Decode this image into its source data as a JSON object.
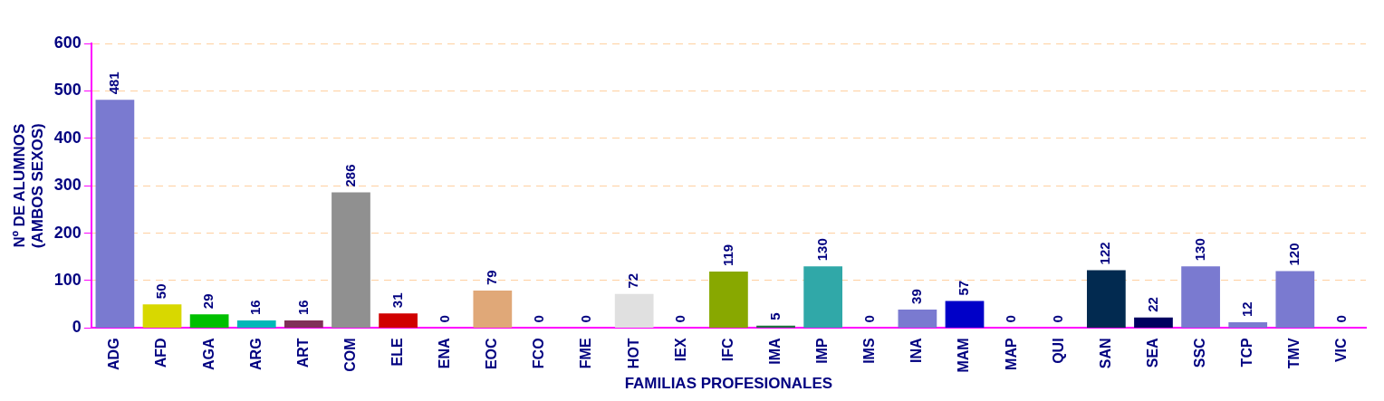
{
  "chart_data": {
    "type": "bar",
    "categories": [
      "ADG",
      "AFD",
      "AGA",
      "ARG",
      "ART",
      "COM",
      "ELE",
      "ENA",
      "EOC",
      "FCO",
      "FME",
      "HOT",
      "IEX",
      "IFC",
      "IMA",
      "IMP",
      "IMS",
      "INA",
      "MAM",
      "MAP",
      "QUI",
      "SAN",
      "SEA",
      "SSC",
      "TCP",
      "TMV",
      "VIC"
    ],
    "values": [
      481,
      50,
      29,
      16,
      16,
      286,
      31,
      0,
      79,
      0,
      0,
      72,
      0,
      119,
      5,
      130,
      0,
      39,
      57,
      0,
      0,
      122,
      22,
      130,
      12,
      120,
      0
    ],
    "colors": [
      "#7a7ad0",
      "#d8d800",
      "#00c000",
      "#00b8b8",
      "#803058",
      "#909090",
      "#d00000",
      "#7a7ad0",
      "#e0a878",
      "#7a7ad0",
      "#7a7ad0",
      "#e0e0e0",
      "#7a7ad0",
      "#88a800",
      "#207040",
      "#30a8a8",
      "#7a7ad0",
      "#7a7ad0",
      "#0000c8",
      "#7a7ad0",
      "#7a7ad0",
      "#022a50",
      "#000060",
      "#7a7ad0",
      "#7a7ad0",
      "#7a7ad0",
      "#7a7ad0"
    ],
    "xlabel": "FAMILIAS PROFESIONALES",
    "ylabel": "Nº DE ALUMNOS\n(AMBOS SEXOS)",
    "ylim": [
      0,
      600
    ],
    "yticks": [
      0,
      100,
      200,
      300,
      400,
      500,
      600
    ],
    "grid": "y",
    "data_labels": true
  }
}
